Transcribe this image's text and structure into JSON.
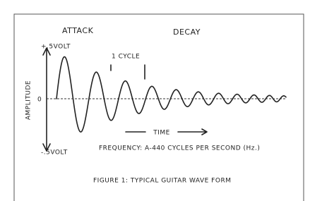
{
  "labels": {
    "attack": "ATTACK",
    "decay": "DECAY",
    "plus_volt": "+.5VOLT",
    "cycle": "1 CYCLE",
    "amplitude": "AMPLITUDE",
    "zero": "0",
    "minus_volt": "-.5VOLT",
    "time": "TIME",
    "frequency": "FREQUENCY: A-440 CYCLES PER SECOND (Hz.)"
  },
  "caption": "FIGURE 1: TYPICAL GUITAR WAVE FORM"
}
